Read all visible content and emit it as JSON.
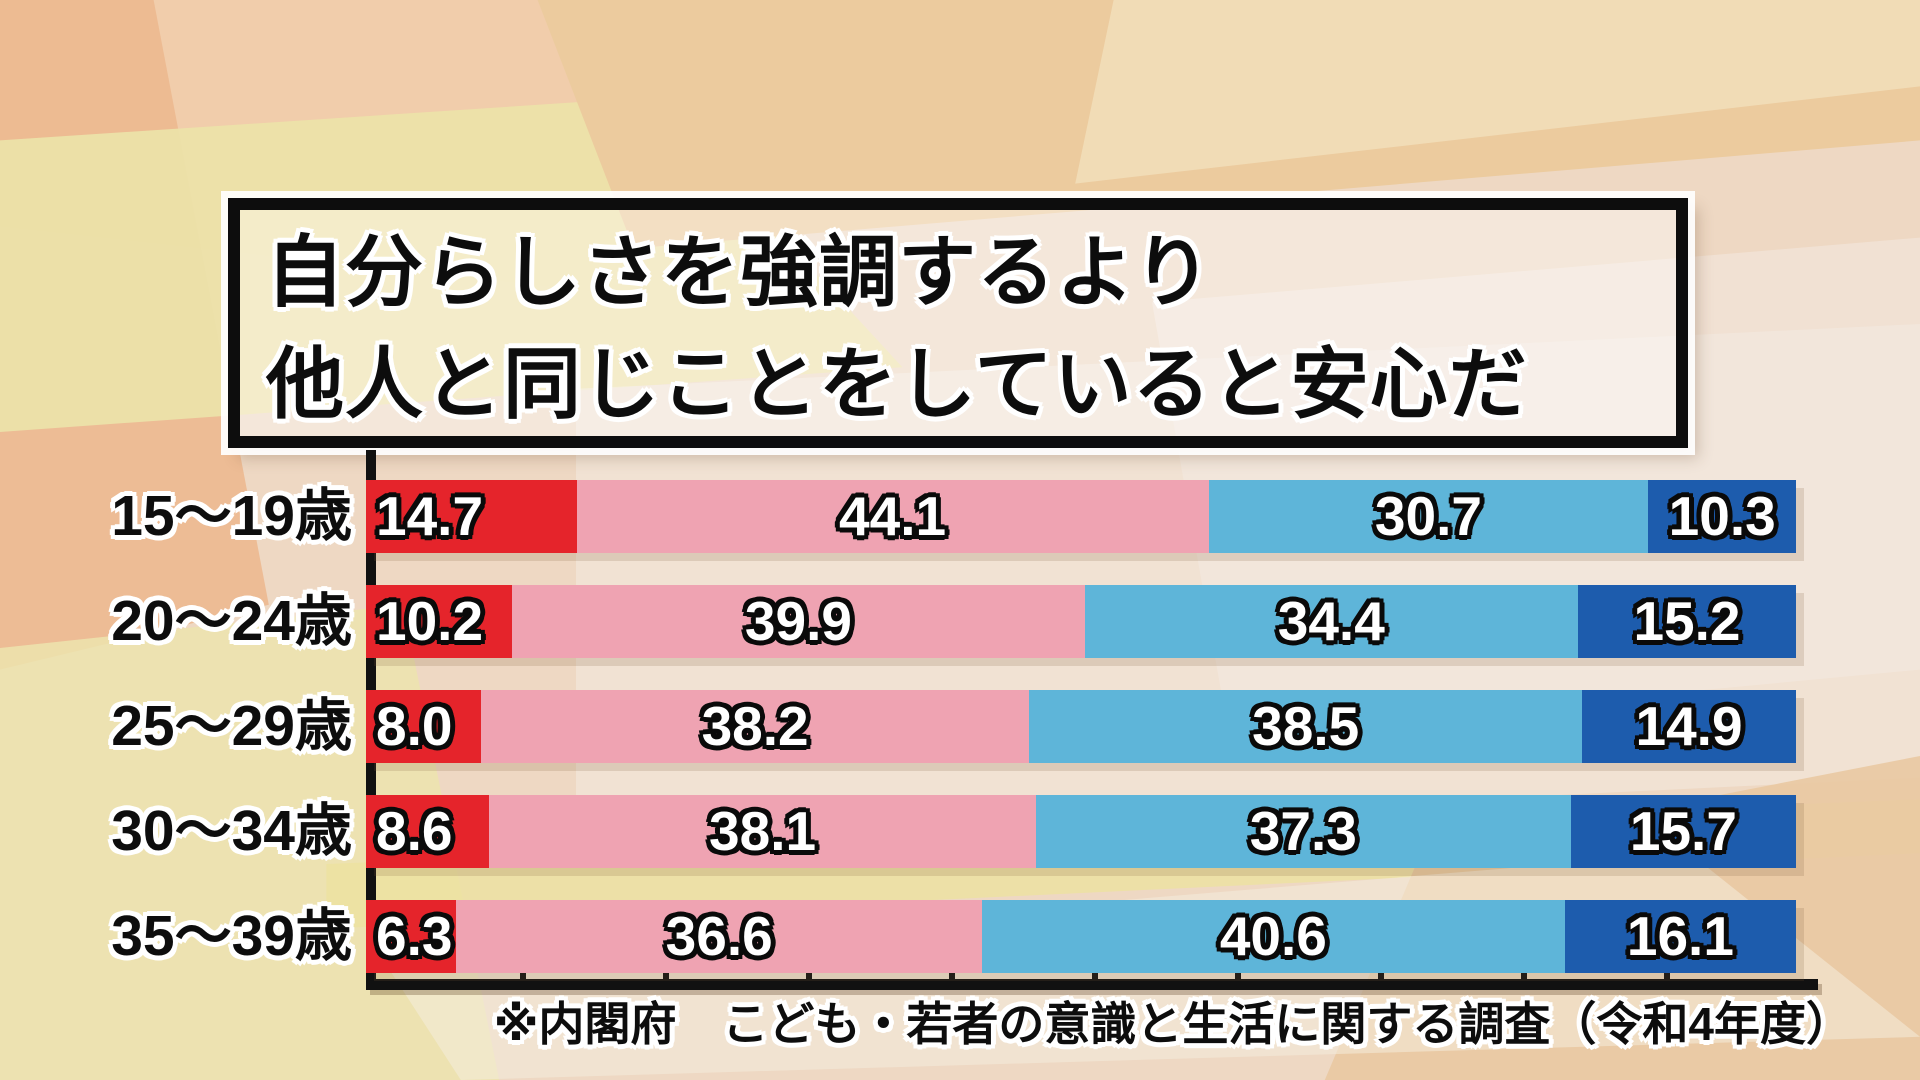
{
  "title": {
    "line1": "自分らしさを強調するより",
    "line2": "他人と同じことをしていると安心だ"
  },
  "source_note": "※内閣府　こども・若者の意識と生活に関する調査（令和4年度）",
  "colors": {
    "segment_red": "#e5242b",
    "segment_pink": "#efa3b2",
    "segment_light_blue": "#5eb5d9",
    "segment_dark_blue": "#1d5cad",
    "axis": "#111111",
    "value_text": "#ffffff",
    "label_text": "#0d0d0d"
  },
  "chart_data": {
    "type": "bar",
    "stacked": true,
    "orientation": "horizontal",
    "unit": "%",
    "xlim": [
      0,
      100
    ],
    "x_tick_interval": 10,
    "grid": false,
    "legend": false,
    "title": "自分らしさを強調するより 他人と同じことをしていると安心だ",
    "categories": [
      "15〜19歳",
      "20〜24歳",
      "25〜29歳",
      "30〜34歳",
      "35〜39歳"
    ],
    "series": [
      {
        "name": "red",
        "color": "#e5242b",
        "values": [
          14.7,
          10.2,
          8.0,
          8.6,
          6.3
        ]
      },
      {
        "name": "pink",
        "color": "#efa3b2",
        "values": [
          44.1,
          39.9,
          38.2,
          38.1,
          36.6
        ]
      },
      {
        "name": "light-blue",
        "color": "#5eb5d9",
        "values": [
          30.7,
          34.4,
          38.5,
          37.3,
          40.6
        ]
      },
      {
        "name": "dark-blue",
        "color": "#1d5cad",
        "values": [
          10.3,
          15.2,
          14.9,
          15.7,
          16.1
        ]
      }
    ]
  }
}
